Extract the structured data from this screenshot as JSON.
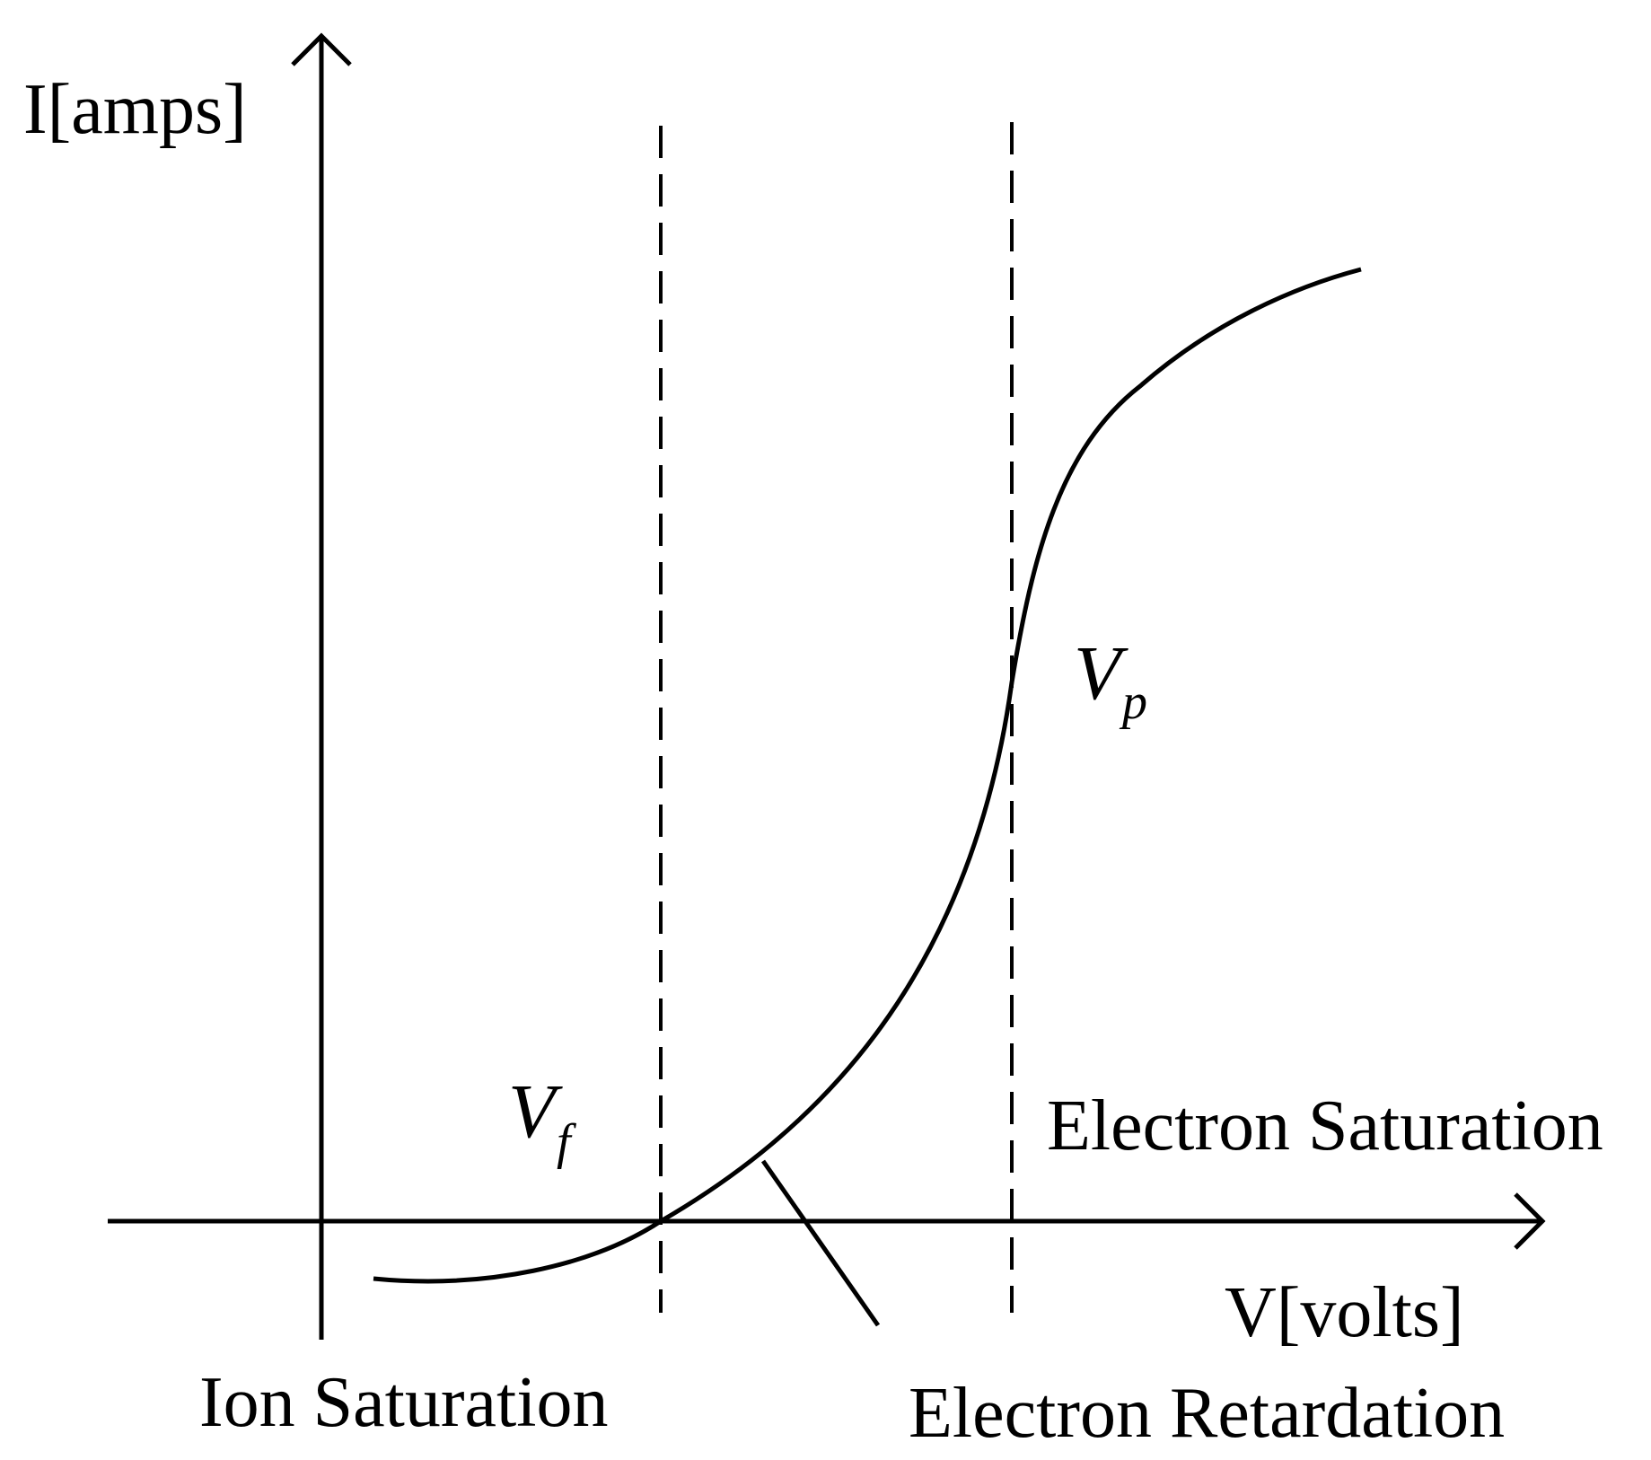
{
  "diagram": {
    "y_axis_label": "I[amps]",
    "x_axis_label": "V[volts]",
    "floating_potential": {
      "symbol": "V",
      "subscript": "f"
    },
    "plasma_potential": {
      "symbol": "V",
      "subscript": "p"
    },
    "regions": {
      "ion_saturation": "Ion Saturation",
      "electron_retardation": "Electron Retardation",
      "electron_saturation": "Electron Saturation"
    },
    "colors": {
      "line": "#000000",
      "background": "#ffffff"
    }
  }
}
